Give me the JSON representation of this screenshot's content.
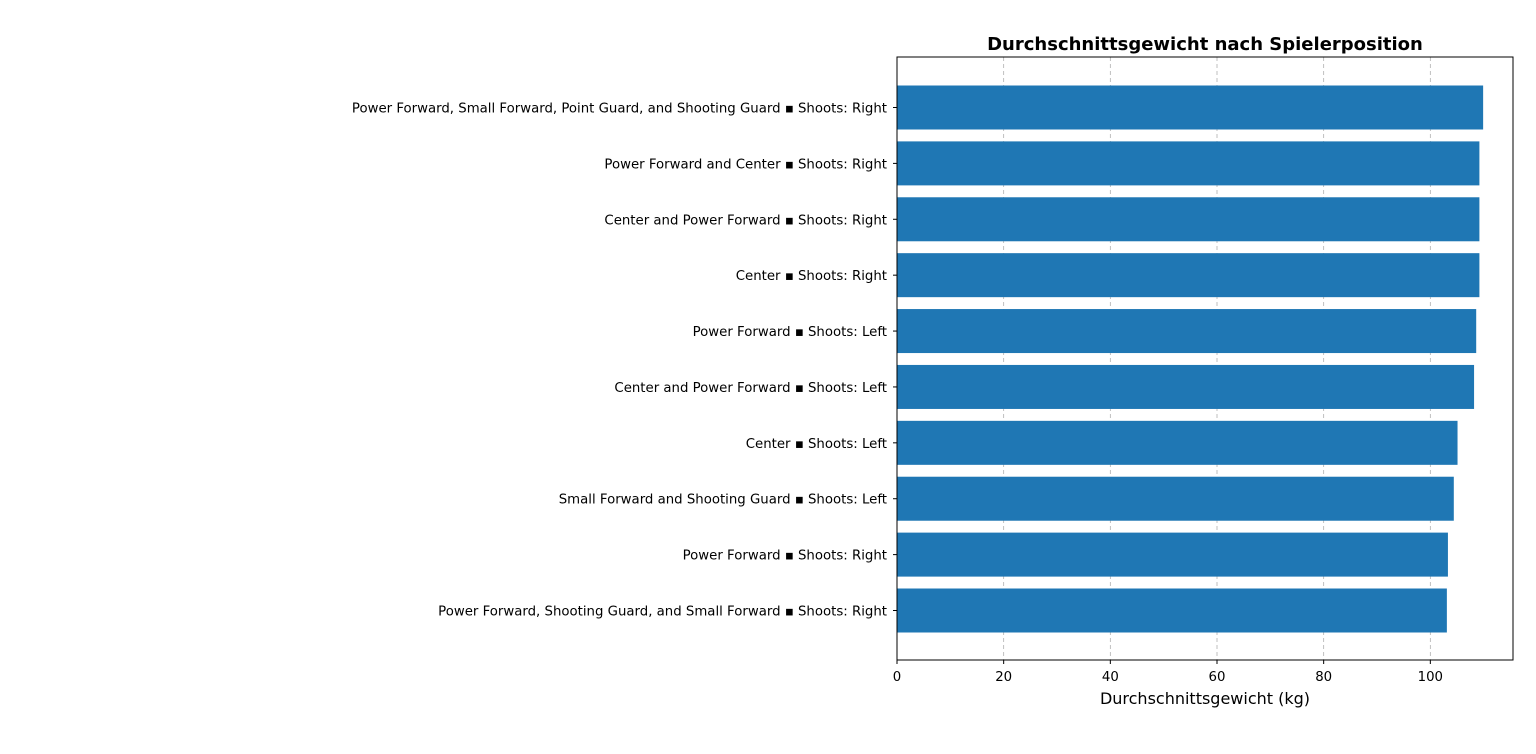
{
  "chart_data": {
    "type": "bar",
    "orientation": "horizontal",
    "title": "Durchschnittsgewicht nach Spielerposition",
    "xlabel": "Durchschnittsgewicht (kg)",
    "ylabel": "",
    "xlim": [
      0,
      115.5
    ],
    "xticks": [
      0,
      20,
      40,
      60,
      80,
      100
    ],
    "grid": "x, dashed",
    "bar_color": "#1f77b4",
    "categories": [
      "Power Forward, Small Forward, Point Guard, and Shooting Guard ▪ Shoots: Right",
      "Power Forward and Center ▪ Shoots: Right",
      "Center and Power Forward ▪ Shoots: Right",
      "Center ▪ Shoots: Right",
      "Power Forward ▪ Shoots: Left",
      "Center and Power Forward ▪ Shoots: Left",
      "Center ▪ Shoots: Left",
      "Small Forward and Shooting Guard ▪ Shoots: Left",
      "Power Forward ▪ Shoots: Right",
      "Power Forward, Shooting Guard, and Small Forward ▪ Shoots: Right"
    ],
    "values": [
      109.9,
      109.2,
      109.2,
      109.2,
      108.6,
      108.2,
      105.1,
      104.4,
      103.3,
      103.1
    ]
  }
}
